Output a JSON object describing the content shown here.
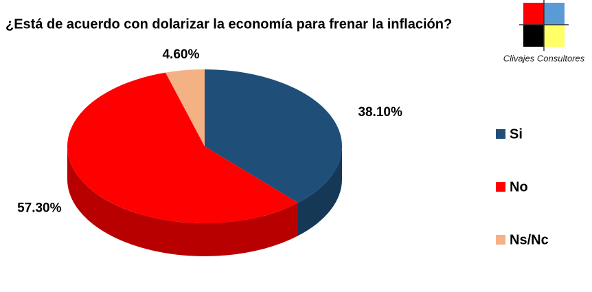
{
  "chart_data": {
    "type": "pie",
    "title": "¿Está de acuerdo con dolarizar la economía para frenar la inflación?",
    "categories": [
      "Si",
      "No",
      "Ns/Nc"
    ],
    "values": [
      38.1,
      57.3,
      4.6
    ],
    "value_labels": [
      "38.10%",
      "57.30%",
      "4.60%"
    ],
    "colors": [
      "#1f4e79",
      "#ff0000",
      "#f4b183"
    ],
    "legend": "right"
  },
  "logo": "Clivajes Consultores"
}
